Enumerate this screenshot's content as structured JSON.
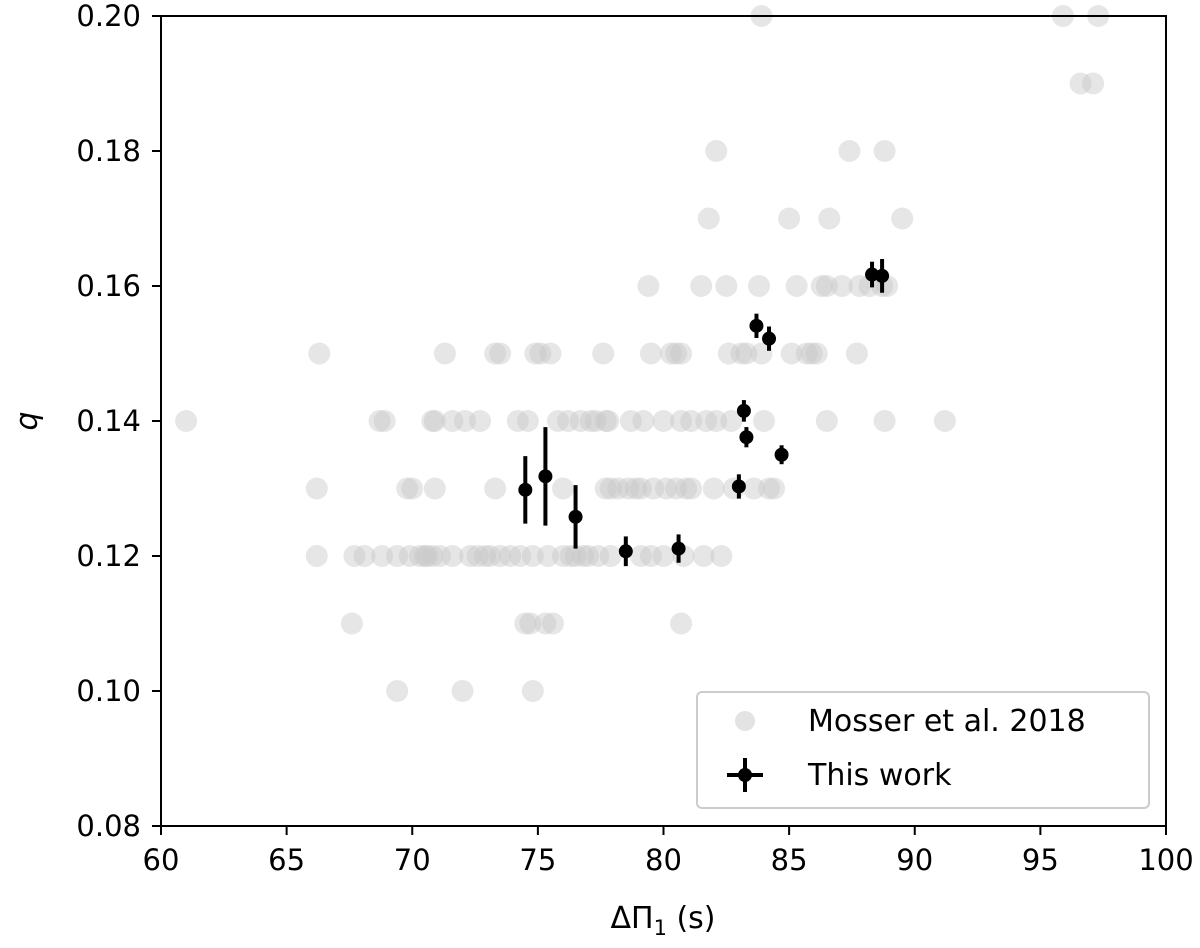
{
  "chart_data": {
    "type": "scatter",
    "xlim": [
      60,
      100
    ],
    "ylim": [
      0.08,
      0.2
    ],
    "x_ticks": [
      60,
      65,
      70,
      75,
      80,
      85,
      90,
      95,
      100
    ],
    "y_ticks": [
      0.08,
      0.1,
      0.12,
      0.14,
      0.16,
      0.18,
      0.2
    ],
    "x_tick_labels": [
      "60",
      "65",
      "70",
      "75",
      "80",
      "85",
      "90",
      "95",
      "100"
    ],
    "y_tick_labels": [
      "0.08",
      "0.10",
      "0.12",
      "0.14",
      "0.16",
      "0.18",
      "0.20"
    ],
    "xlabel": "ΔΠ",
    "xlabel_subscript": "1",
    "xlabel_unit": " (s)",
    "ylabel": "q",
    "grid": false,
    "legend_position": "lower-right",
    "series": [
      {
        "name": "Mosser et al. 2018",
        "marker": "circle",
        "color": "#c8c8c8",
        "points": [
          [
            61.0,
            0.14
          ],
          [
            66.3,
            0.15
          ],
          [
            66.2,
            0.13
          ],
          [
            66.2,
            0.12
          ],
          [
            67.6,
            0.11
          ],
          [
            67.7,
            0.12
          ],
          [
            68.1,
            0.12
          ],
          [
            68.7,
            0.14
          ],
          [
            68.9,
            0.14
          ],
          [
            68.8,
            0.12
          ],
          [
            69.4,
            0.1
          ],
          [
            69.4,
            0.12
          ],
          [
            69.8,
            0.13
          ],
          [
            70.0,
            0.13
          ],
          [
            69.9,
            0.12
          ],
          [
            70.3,
            0.12
          ],
          [
            70.5,
            0.12
          ],
          [
            70.6,
            0.12
          ],
          [
            70.8,
            0.12
          ],
          [
            70.8,
            0.14
          ],
          [
            70.9,
            0.14
          ],
          [
            70.9,
            0.13
          ],
          [
            71.1,
            0.12
          ],
          [
            71.3,
            0.15
          ],
          [
            71.6,
            0.14
          ],
          [
            71.6,
            0.12
          ],
          [
            72.0,
            0.1
          ],
          [
            72.1,
            0.14
          ],
          [
            72.3,
            0.12
          ],
          [
            72.7,
            0.14
          ],
          [
            72.6,
            0.12
          ],
          [
            72.9,
            0.12
          ],
          [
            73.1,
            0.12
          ],
          [
            73.3,
            0.15
          ],
          [
            73.3,
            0.13
          ],
          [
            73.5,
            0.15
          ],
          [
            73.5,
            0.12
          ],
          [
            73.9,
            0.12
          ],
          [
            74.2,
            0.14
          ],
          [
            74.3,
            0.12
          ],
          [
            74.5,
            0.11
          ],
          [
            74.7,
            0.11
          ],
          [
            74.6,
            0.14
          ],
          [
            74.8,
            0.1
          ],
          [
            74.8,
            0.12
          ],
          [
            74.9,
            0.15
          ],
          [
            75.1,
            0.15
          ],
          [
            75.3,
            0.11
          ],
          [
            75.4,
            0.12
          ],
          [
            75.5,
            0.15
          ],
          [
            75.6,
            0.11
          ],
          [
            75.8,
            0.14
          ],
          [
            76.0,
            0.13
          ],
          [
            76.0,
            0.12
          ],
          [
            76.2,
            0.14
          ],
          [
            76.3,
            0.12
          ],
          [
            76.5,
            0.12
          ],
          [
            76.7,
            0.14
          ],
          [
            76.8,
            0.12
          ],
          [
            77.0,
            0.12
          ],
          [
            77.1,
            0.14
          ],
          [
            77.3,
            0.14
          ],
          [
            77.4,
            0.12
          ],
          [
            77.6,
            0.15
          ],
          [
            77.7,
            0.14
          ],
          [
            77.7,
            0.13
          ],
          [
            77.8,
            0.14
          ],
          [
            77.9,
            0.12
          ],
          [
            77.9,
            0.13
          ],
          [
            78.2,
            0.13
          ],
          [
            78.6,
            0.13
          ],
          [
            78.7,
            0.14
          ],
          [
            78.9,
            0.13
          ],
          [
            79.1,
            0.13
          ],
          [
            79.1,
            0.12
          ],
          [
            79.2,
            0.14
          ],
          [
            79.4,
            0.16
          ],
          [
            79.5,
            0.15
          ],
          [
            79.5,
            0.12
          ],
          [
            79.6,
            0.13
          ],
          [
            80.0,
            0.14
          ],
          [
            80.0,
            0.12
          ],
          [
            80.1,
            0.13
          ],
          [
            80.3,
            0.15
          ],
          [
            80.5,
            0.15
          ],
          [
            80.5,
            0.13
          ],
          [
            80.7,
            0.15
          ],
          [
            80.7,
            0.14
          ],
          [
            80.7,
            0.11
          ],
          [
            80.8,
            0.12
          ],
          [
            80.9,
            0.13
          ],
          [
            81.1,
            0.14
          ],
          [
            81.1,
            0.13
          ],
          [
            81.5,
            0.16
          ],
          [
            81.6,
            0.12
          ],
          [
            81.7,
            0.14
          ],
          [
            81.8,
            0.17
          ],
          [
            82.0,
            0.13
          ],
          [
            82.1,
            0.18
          ],
          [
            82.1,
            0.14
          ],
          [
            82.3,
            0.12
          ],
          [
            82.5,
            0.16
          ],
          [
            82.6,
            0.15
          ],
          [
            82.7,
            0.14
          ],
          [
            82.8,
            0.13
          ],
          [
            83.1,
            0.15
          ],
          [
            83.3,
            0.15
          ],
          [
            83.6,
            0.13
          ],
          [
            83.8,
            0.16
          ],
          [
            83.9,
            0.15
          ],
          [
            83.9,
            0.2
          ],
          [
            84.0,
            0.14
          ],
          [
            84.2,
            0.13
          ],
          [
            84.4,
            0.13
          ],
          [
            85.0,
            0.17
          ],
          [
            85.1,
            0.15
          ],
          [
            85.3,
            0.16
          ],
          [
            85.7,
            0.15
          ],
          [
            85.9,
            0.15
          ],
          [
            86.1,
            0.15
          ],
          [
            86.3,
            0.16
          ],
          [
            86.5,
            0.16
          ],
          [
            86.6,
            0.17
          ],
          [
            86.5,
            0.14
          ],
          [
            87.1,
            0.16
          ],
          [
            87.4,
            0.18
          ],
          [
            87.7,
            0.15
          ],
          [
            87.8,
            0.16
          ],
          [
            88.2,
            0.16
          ],
          [
            88.7,
            0.16
          ],
          [
            88.9,
            0.16
          ],
          [
            88.8,
            0.18
          ],
          [
            88.8,
            0.14
          ],
          [
            89.5,
            0.17
          ],
          [
            91.2,
            0.14
          ],
          [
            95.9,
            0.2
          ],
          [
            96.6,
            0.19
          ],
          [
            97.1,
            0.19
          ],
          [
            97.3,
            0.2
          ]
        ]
      },
      {
        "name": "This work",
        "marker": "circle-errorbar",
        "color": "#000000",
        "points": [
          {
            "x": 74.5,
            "y": 0.1298,
            "yerr": 0.005
          },
          {
            "x": 75.3,
            "y": 0.1318,
            "yerr": 0.0073
          },
          {
            "x": 76.5,
            "y": 0.1258,
            "yerr": 0.0047
          },
          {
            "x": 78.5,
            "y": 0.1207,
            "yerr": 0.0022
          },
          {
            "x": 80.6,
            "y": 0.1211,
            "yerr": 0.0021
          },
          {
            "x": 83.0,
            "y": 0.1303,
            "yerr": 0.0018
          },
          {
            "x": 83.2,
            "y": 0.1415,
            "yerr": 0.0016
          },
          {
            "x": 83.3,
            "y": 0.1376,
            "yerr": 0.0015
          },
          {
            "x": 83.7,
            "y": 0.1541,
            "yerr": 0.0018
          },
          {
            "x": 84.2,
            "y": 0.1522,
            "yerr": 0.0018
          },
          {
            "x": 84.7,
            "y": 0.135,
            "yerr": 0.0014
          },
          {
            "x": 88.3,
            "y": 0.1617,
            "yerr": 0.0019
          },
          {
            "x": 88.7,
            "y": 0.1615,
            "yerr": 0.0025
          }
        ]
      }
    ]
  }
}
